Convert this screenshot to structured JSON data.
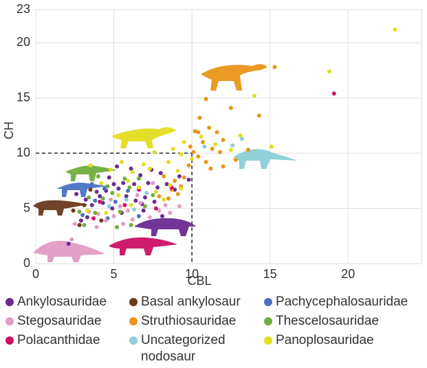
{
  "chart_data": {
    "type": "scatter",
    "x_label": "CBL",
    "y_label": "CH",
    "xlim": [
      0,
      24.7
    ],
    "ylim": [
      0,
      23
    ],
    "xticks": [
      0,
      5,
      10,
      15,
      20
    ],
    "yticks": [
      0,
      5,
      10,
      15,
      20,
      23
    ],
    "grid": true,
    "dashed_lines": {
      "x": 10,
      "y": 10
    },
    "series": [
      {
        "name": "Ankylosauridae",
        "color": "#6a2c91",
        "x": [
          2.6,
          3.2,
          3.9,
          4.5,
          5,
          5.6,
          6.1,
          6.7,
          7.2,
          7.8,
          8.4,
          8.9,
          9.2,
          5.2,
          4.7,
          3.6,
          4.3,
          5.8,
          6.4,
          7,
          7.6,
          6.9,
          5.5,
          4.9,
          3.3,
          2.9,
          8.1,
          6.3,
          5.3,
          4.1,
          7.4,
          8,
          6.8,
          2.1,
          9.8
        ],
        "y": [
          6.3,
          5.8,
          6.5,
          6.6,
          7.2,
          7.3,
          8.6,
          8,
          7.3,
          6.9,
          7.2,
          6.7,
          7.9,
          8.8,
          7.8,
          5.3,
          5.5,
          6.1,
          5.7,
          6,
          5.6,
          4.8,
          4.6,
          5,
          4.2,
          3.9,
          4.3,
          7.2,
          6.8,
          6.1,
          8.5,
          8.2,
          5.4,
          1.8,
          7.6
        ]
      },
      {
        "name": "Basal ankylosaur",
        "color": "#6b3a1e",
        "x": [
          2.8,
          3.1,
          3.5,
          2.4,
          4.2
        ],
        "y": [
          3.5,
          5.3,
          6.7,
          4.8,
          3.9
        ]
      },
      {
        "name": "Pachycephalosauridae",
        "color": "#4a72c4",
        "x": [
          3.8,
          4.4,
          5.1,
          3,
          5.9,
          6.6,
          4.6,
          3.6
        ],
        "y": [
          5.7,
          6.8,
          5.6,
          4.4,
          6.6,
          4.3,
          4.1,
          7.2
        ]
      },
      {
        "name": "Stegosauridae",
        "color": "#e39cc6",
        "x": [
          2.3,
          2.5,
          3.4,
          4,
          4.5,
          5,
          5.4,
          5.9,
          6.2,
          6.7,
          7.3,
          7.9,
          8.6,
          9.2,
          4.8,
          3.9,
          5.6,
          6.5,
          7.5,
          8.3
        ],
        "y": [
          2.2,
          3.6,
          4.7,
          4.5,
          3.9,
          4.3,
          5.2,
          4.8,
          4,
          5.5,
          4.2,
          4.8,
          4.6,
          5.2,
          5.8,
          3.3,
          3.6,
          6.2,
          7.3,
          5.3
        ]
      },
      {
        "name": "Struthiosauridae",
        "color": "#e8961a",
        "x": [
          15.3,
          10.9,
          12.5,
          14.3,
          10.5,
          11.1,
          11.6,
          10.2,
          12,
          10.7,
          11.3,
          9.9,
          11.8,
          10.4,
          12.8,
          11.2,
          10.9,
          9.8,
          9.5,
          8.9,
          9.3,
          8.2,
          8.7,
          7.9,
          9.1,
          8.5,
          10.4,
          13.6,
          12,
          10.1
        ],
        "y": [
          17.8,
          14.9,
          14.1,
          13.4,
          13.2,
          12.3,
          11.9,
          12,
          11.2,
          11,
          10.4,
          10.6,
          10.1,
          9.7,
          9.4,
          8.6,
          9.2,
          8.9,
          7.8,
          7.5,
          7,
          7.9,
          6.7,
          6.1,
          6.3,
          5.9,
          11.9,
          10.3,
          8.8,
          10.1
        ]
      },
      {
        "name": "Thescelosauridae",
        "color": "#6fae3c",
        "x": [
          3.1,
          3.8,
          4.3,
          4.9,
          5.4,
          6,
          6.6,
          7,
          5.7,
          4.6,
          3.4,
          6.1,
          5.2,
          7.5,
          2.8,
          4
        ],
        "y": [
          3.5,
          4.6,
          5.9,
          6.4,
          4.7,
          6.9,
          7.7,
          5.2,
          7.7,
          7,
          6,
          3.5,
          3.3,
          6.2,
          4.7,
          7.9
        ]
      },
      {
        "name": "Polacanthidae",
        "color": "#cc1166",
        "x": [
          19.1,
          7.7,
          6.6,
          4.1,
          5.7,
          8.7,
          3.7
        ],
        "y": [
          15.4,
          5,
          6.7,
          5.6,
          5.3,
          6.9,
          4.1
        ]
      },
      {
        "name": "Uncategorized nodosaur",
        "color": "#8ccfd6",
        "x": [
          13.2,
          12.6,
          7.1,
          5.8,
          4.7,
          10.8,
          6.3
        ],
        "y": [
          11.3,
          10.7,
          6.4,
          5.8,
          5.2,
          10.6,
          4.9
        ]
      },
      {
        "name": "Panoplosauridae",
        "color": "#e3de1f",
        "x": [
          23,
          18.8,
          14,
          15.1,
          13.1,
          12.5,
          10.6,
          11.5,
          9.5,
          10,
          9.3,
          8.5,
          8.8,
          9.1,
          7.6,
          7.3,
          6.9,
          6.2,
          5.5,
          4.8,
          3.5,
          4.2,
          5.9,
          6.6,
          7.7,
          8.6,
          9.3,
          8.2,
          5.3,
          4.5,
          6.1,
          3.3
        ],
        "y": [
          21.2,
          17.4,
          15.2,
          10.6,
          11.6,
          10.3,
          11.5,
          10.8,
          11,
          9.5,
          9.9,
          9.2,
          10.4,
          8.4,
          10.1,
          8.6,
          9,
          8.3,
          9.2,
          8.5,
          8.9,
          7.3,
          7.5,
          6.9,
          6.5,
          7.1,
          6.8,
          5.8,
          6.2,
          4.6,
          5.3,
          4.8
        ]
      }
    ]
  }
}
